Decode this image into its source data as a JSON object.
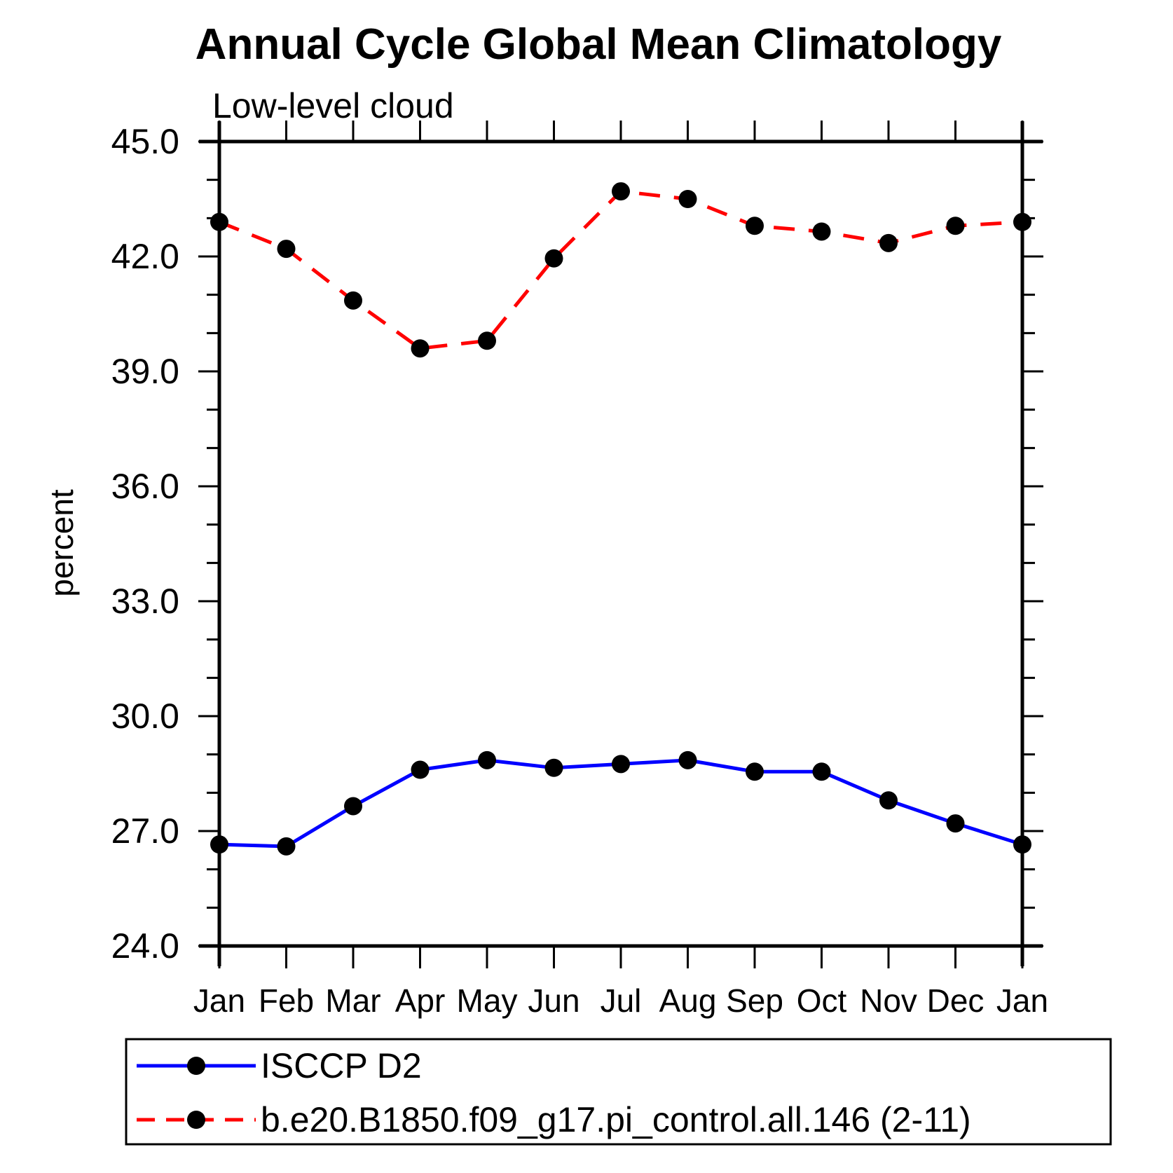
{
  "page": {
    "background": "#ffffff"
  },
  "chart_data": {
    "type": "line",
    "title": "Annual Cycle Global Mean Climatology",
    "subtitle": "Low-level cloud",
    "ylabel": "percent",
    "xlabel": "",
    "ylim": [
      24.0,
      45.0
    ],
    "ytick_major_interval": 3.0,
    "ytick_minor_interval": 1.0,
    "ytick_labels": [
      "24.0",
      "27.0",
      "30.0",
      "33.0",
      "36.0",
      "39.0",
      "42.0",
      "45.0"
    ],
    "categories": [
      "Jan",
      "Feb",
      "Mar",
      "Apr",
      "May",
      "Jun",
      "Jul",
      "Aug",
      "Sep",
      "Oct",
      "Nov",
      "Dec",
      "Jan"
    ],
    "grid": false,
    "axis_color": "#000000",
    "marker_color": "#000000",
    "legend_position": "bottom-left-box",
    "series": [
      {
        "name": "ISCCP D2",
        "color": "#0000ff",
        "line_style": "solid",
        "marker": "filled-circle",
        "values": [
          26.65,
          26.6,
          27.65,
          28.6,
          28.85,
          28.65,
          28.75,
          28.85,
          28.55,
          28.55,
          27.8,
          27.2,
          26.65
        ]
      },
      {
        "name": "b.e20.B1850.f09_g17.pi_control.all.146 (2-11)",
        "color": "#ff0000",
        "line_style": "dashed",
        "marker": "filled-circle",
        "values": [
          42.9,
          42.2,
          40.85,
          39.6,
          39.8,
          41.95,
          43.7,
          43.5,
          42.8,
          42.65,
          42.35,
          42.8,
          42.9
        ]
      }
    ]
  }
}
